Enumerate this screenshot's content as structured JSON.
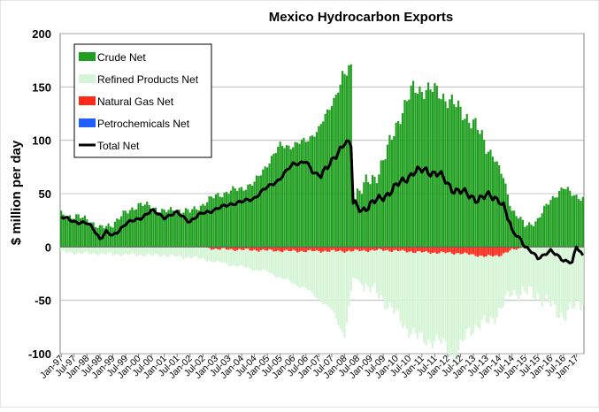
{
  "chart_data": {
    "type": "bar",
    "title": "Mexico Hydrocarbon Exports",
    "xlabel": "",
    "ylabel": "$ million per day",
    "ylim": [
      -100,
      200
    ],
    "yticks": [
      200,
      150,
      100,
      50,
      0,
      -50,
      -100
    ],
    "x_start": "Jan-97",
    "x_tick_labels": [
      "Jan-97",
      "Jul-97",
      "Jan-98",
      "Jul-98",
      "Jan-99",
      "Jul-99",
      "Jan-00",
      "Jul-00",
      "Jan-01",
      "Jul-01",
      "Jan-02",
      "Jul-02",
      "Jan-03",
      "Jul-03",
      "Jan-04",
      "Jul-04",
      "Jan-05",
      "Jul-05",
      "Jan-06",
      "Jul-06",
      "Jan-07",
      "Jul-07",
      "Jan-08",
      "Jul-08",
      "Jan-09",
      "Jul-09",
      "Jan-10",
      "Jul-10",
      "Jan-11",
      "Jul-11",
      "Jan-12",
      "Jul-12",
      "Jan-13",
      "Jul-13",
      "Jan-14",
      "Jul-14",
      "Jan-15",
      "Jul-15",
      "Jan-16",
      "Jul-16",
      "Jan-17"
    ],
    "grid": true,
    "legend_position": "top-left",
    "stacked": true,
    "series": [
      {
        "name": "Crude Net",
        "kind": "bar",
        "color": "#1f9e1f",
        "anchors": [
          [
            0,
            31
          ],
          [
            6,
            28
          ],
          [
            12,
            27
          ],
          [
            18,
            17
          ],
          [
            24,
            22
          ],
          [
            30,
            32
          ],
          [
            36,
            40
          ],
          [
            42,
            38
          ],
          [
            48,
            33
          ],
          [
            54,
            35
          ],
          [
            60,
            33
          ],
          [
            66,
            40
          ],
          [
            72,
            48
          ],
          [
            78,
            52
          ],
          [
            84,
            55
          ],
          [
            90,
            60
          ],
          [
            96,
            78
          ],
          [
            102,
            95
          ],
          [
            108,
            95
          ],
          [
            114,
            100
          ],
          [
            120,
            110
          ],
          [
            126,
            135
          ],
          [
            132,
            160
          ],
          [
            135,
            168
          ],
          [
            136,
            50
          ],
          [
            140,
            55
          ],
          [
            146,
            65
          ],
          [
            152,
            90
          ],
          [
            158,
            125
          ],
          [
            164,
            148
          ],
          [
            170,
            148
          ],
          [
            176,
            145
          ],
          [
            182,
            135
          ],
          [
            188,
            125
          ],
          [
            194,
            110
          ],
          [
            200,
            90
          ],
          [
            206,
            65
          ],
          [
            210,
            35
          ],
          [
            216,
            20
          ],
          [
            222,
            25
          ],
          [
            228,
            45
          ],
          [
            234,
            55
          ],
          [
            243,
            45
          ]
        ]
      },
      {
        "name": "Refined Products Net",
        "kind": "bar",
        "color": "#d6f5d6",
        "anchors": [
          [
            0,
            -5
          ],
          [
            24,
            -7
          ],
          [
            48,
            -8
          ],
          [
            72,
            -12
          ],
          [
            96,
            -20
          ],
          [
            114,
            -35
          ],
          [
            126,
            -55
          ],
          [
            132,
            -80
          ],
          [
            136,
            -25
          ],
          [
            150,
            -45
          ],
          [
            160,
            -70
          ],
          [
            166,
            -80
          ],
          [
            178,
            -85
          ],
          [
            184,
            -98
          ],
          [
            190,
            -70
          ],
          [
            200,
            -60
          ],
          [
            210,
            -40
          ],
          [
            222,
            -45
          ],
          [
            234,
            -65
          ],
          [
            243,
            -50
          ]
        ]
      },
      {
        "name": "Natural Gas Net",
        "kind": "bar",
        "color": "#ff2a1a",
        "anchors": [
          [
            0,
            0
          ],
          [
            66,
            0
          ],
          [
            72,
            -2
          ],
          [
            90,
            -3
          ],
          [
            108,
            -4
          ],
          [
            132,
            -4
          ],
          [
            150,
            -3
          ],
          [
            168,
            -5
          ],
          [
            186,
            -6
          ],
          [
            198,
            -9
          ],
          [
            204,
            -8
          ],
          [
            210,
            -3
          ],
          [
            216,
            0
          ],
          [
            243,
            0
          ]
        ]
      },
      {
        "name": "Petrochemicals Net",
        "kind": "bar",
        "color": "#1f5fff",
        "anchors": [
          [
            0,
            0
          ],
          [
            243,
            0
          ]
        ]
      },
      {
        "name": "Total Net",
        "kind": "line",
        "color": "#000000",
        "anchors": [
          [
            0,
            28
          ],
          [
            6,
            24
          ],
          [
            12,
            22
          ],
          [
            15,
            17
          ],
          [
            18,
            8
          ],
          [
            21,
            14
          ],
          [
            24,
            10
          ],
          [
            27,
            16
          ],
          [
            30,
            22
          ],
          [
            36,
            26
          ],
          [
            42,
            34
          ],
          [
            48,
            28
          ],
          [
            54,
            32
          ],
          [
            60,
            24
          ],
          [
            66,
            32
          ],
          [
            72,
            35
          ],
          [
            78,
            40
          ],
          [
            84,
            42
          ],
          [
            90,
            46
          ],
          [
            96,
            56
          ],
          [
            102,
            64
          ],
          [
            108,
            78
          ],
          [
            114,
            80
          ],
          [
            117,
            70
          ],
          [
            120,
            68
          ],
          [
            126,
            78
          ],
          [
            132,
            100
          ],
          [
            135,
            95
          ],
          [
            136,
            40
          ],
          [
            140,
            35
          ],
          [
            146,
            42
          ],
          [
            152,
            50
          ],
          [
            158,
            60
          ],
          [
            164,
            70
          ],
          [
            170,
            72
          ],
          [
            176,
            68
          ],
          [
            182,
            55
          ],
          [
            188,
            50
          ],
          [
            194,
            45
          ],
          [
            200,
            48
          ],
          [
            204,
            45
          ],
          [
            206,
            38
          ],
          [
            210,
            15
          ],
          [
            214,
            8
          ],
          [
            216,
            0
          ],
          [
            222,
            -10
          ],
          [
            228,
            -4
          ],
          [
            234,
            -12
          ],
          [
            238,
            -15
          ],
          [
            240,
            0
          ],
          [
            243,
            -8
          ]
        ]
      }
    ]
  }
}
